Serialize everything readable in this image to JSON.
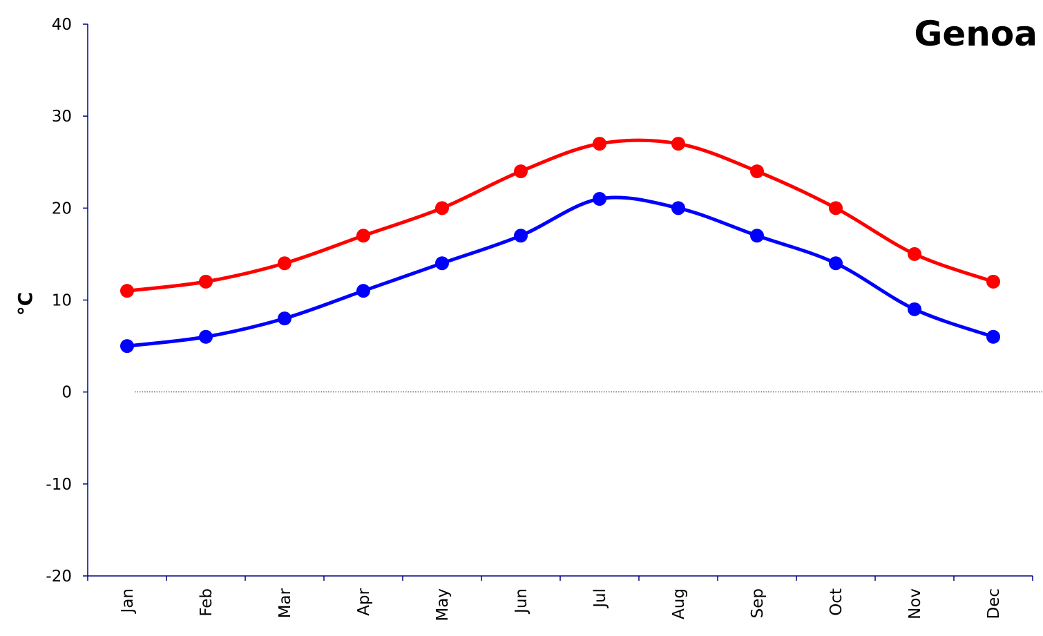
{
  "chart_data": {
    "type": "line",
    "title": "Genoa",
    "ylabel": "°C",
    "xlabel": "",
    "ylim": [
      -20,
      40
    ],
    "yticks": [
      -20,
      -10,
      0,
      10,
      20,
      30,
      40
    ],
    "categories": [
      "Jan",
      "Feb",
      "Mar",
      "Apr",
      "May",
      "Jun",
      "Jul",
      "Aug",
      "Sep",
      "Oct",
      "Nov",
      "Dec"
    ],
    "series": [
      {
        "color": "#ff0000",
        "values": [
          11,
          12,
          14,
          17,
          20,
          24,
          27,
          27,
          24,
          20,
          15,
          12
        ]
      },
      {
        "color": "#0000ff",
        "values": [
          5,
          6,
          8,
          11,
          14,
          17,
          21,
          20,
          17,
          14,
          9,
          6
        ]
      }
    ],
    "zero_line": "dotted",
    "axis_color": "#000080",
    "grid": false,
    "legend": "none"
  }
}
